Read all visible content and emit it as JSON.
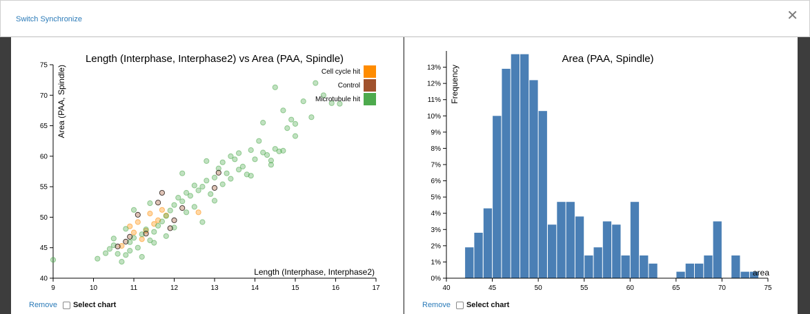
{
  "toolbar": {
    "sync_label": "Switch Synchronize",
    "close_glyph": "✕"
  },
  "colors": {
    "cell_cycle": "#ff8c00",
    "control": "#a0522d",
    "microtubule": "#4daa4d",
    "bar": "#4a7fb5",
    "link": "#2a7ab8"
  },
  "footer": {
    "remove_label": "Remove",
    "select_label": "Select chart"
  },
  "chart_data": [
    {
      "type": "scatter",
      "title": "Length (Interphase, Interphase2) vs Area (PAA, Spindle)",
      "xlabel": "Length (Interphase, Interphase2)",
      "ylabel": "Area (PAA, Spindle)",
      "xlim": [
        9,
        17
      ],
      "ylim": [
        40,
        75
      ],
      "xticks": [
        9,
        10,
        11,
        12,
        13,
        14,
        15,
        16,
        17
      ],
      "yticks": [
        40,
        45,
        50,
        55,
        60,
        65,
        70,
        75
      ],
      "legend_position": "top-right",
      "series": [
        {
          "name": "Cell cycle hit",
          "color": "#ff8c00",
          "points": [
            [
              10.7,
              45.3
            ],
            [
              10.9,
              48.5
            ],
            [
              11.1,
              49.2
            ],
            [
              11.3,
              47.8
            ],
            [
              11.4,
              50.6
            ],
            [
              11.6,
              49.5
            ],
            [
              11.8,
              50.3
            ],
            [
              11.2,
              46.4
            ],
            [
              11.0,
              47.5
            ],
            [
              12.6,
              50.8
            ],
            [
              11.5,
              48.9
            ],
            [
              11.7,
              51.2
            ]
          ]
        },
        {
          "name": "Control",
          "color": "#a0522d",
          "points": [
            [
              10.6,
              45.2
            ],
            [
              10.9,
              46.8
            ],
            [
              11.1,
              50.4
            ],
            [
              11.6,
              52.4
            ],
            [
              11.7,
              54.0
            ],
            [
              12.0,
              49.5
            ],
            [
              13.0,
              54.8
            ],
            [
              12.2,
              51.5
            ],
            [
              11.3,
              47.3
            ],
            [
              10.8,
              46.0
            ],
            [
              11.9,
              48.2
            ],
            [
              13.1,
              57.3
            ]
          ]
        },
        {
          "name": "Microtubule hit",
          "color": "#4daa4d",
          "points": [
            [
              9.0,
              43.0
            ],
            [
              10.1,
              43.2
            ],
            [
              10.3,
              44.1
            ],
            [
              10.4,
              44.8
            ],
            [
              10.5,
              45.4
            ],
            [
              10.6,
              44.0
            ],
            [
              10.7,
              42.7
            ],
            [
              10.8,
              43.8
            ],
            [
              10.9,
              45.9
            ],
            [
              11.0,
              46.6
            ],
            [
              11.1,
              45.0
            ],
            [
              11.2,
              47.2
            ],
            [
              11.3,
              48.0
            ],
            [
              11.4,
              46.2
            ],
            [
              11.5,
              47.6
            ],
            [
              11.6,
              48.6
            ],
            [
              11.7,
              49.3
            ],
            [
              11.8,
              50.2
            ],
            [
              11.9,
              51.1
            ],
            [
              12.0,
              52.0
            ],
            [
              12.1,
              53.2
            ],
            [
              12.2,
              52.6
            ],
            [
              12.3,
              54.0
            ],
            [
              12.4,
              53.5
            ],
            [
              12.5,
              55.2
            ],
            [
              12.6,
              54.4
            ],
            [
              12.7,
              55.0
            ],
            [
              12.8,
              56.0
            ],
            [
              12.9,
              53.8
            ],
            [
              13.0,
              56.5
            ],
            [
              13.1,
              58.0
            ],
            [
              13.2,
              59.0
            ],
            [
              13.3,
              57.2
            ],
            [
              13.4,
              60.0
            ],
            [
              13.5,
              59.5
            ],
            [
              13.6,
              60.5
            ],
            [
              13.7,
              58.3
            ],
            [
              13.8,
              57.0
            ],
            [
              13.9,
              61.0
            ],
            [
              14.0,
              59.5
            ],
            [
              14.1,
              62.5
            ],
            [
              14.2,
              65.5
            ],
            [
              14.3,
              60.2
            ],
            [
              14.4,
              58.6
            ],
            [
              14.5,
              61.2
            ],
            [
              14.6,
              60.8
            ],
            [
              14.7,
              67.5
            ],
            [
              14.8,
              64.6
            ],
            [
              14.9,
              66.0
            ],
            [
              15.0,
              63.3
            ],
            [
              15.2,
              69.0
            ],
            [
              15.5,
              72.0
            ],
            [
              15.7,
              70.0
            ],
            [
              15.9,
              68.7
            ],
            [
              16.1,
              68.6
            ],
            [
              10.5,
              46.5
            ],
            [
              10.9,
              44.5
            ],
            [
              11.2,
              43.5
            ],
            [
              11.5,
              45.8
            ],
            [
              11.8,
              46.9
            ],
            [
              12.0,
              48.3
            ],
            [
              12.3,
              50.8
            ],
            [
              12.5,
              51.7
            ],
            [
              12.7,
              49.2
            ],
            [
              13.0,
              52.7
            ],
            [
              13.2,
              55.4
            ],
            [
              13.4,
              56.3
            ],
            [
              13.6,
              57.8
            ],
            [
              13.9,
              56.8
            ],
            [
              14.2,
              60.6
            ],
            [
              14.4,
              59.3
            ],
            [
              14.7,
              60.9
            ],
            [
              15.0,
              65.3
            ],
            [
              15.4,
              66.4
            ],
            [
              14.5,
              71.3
            ],
            [
              12.2,
              57.2
            ],
            [
              12.8,
              59.2
            ],
            [
              11.0,
              51.2
            ],
            [
              11.4,
              52.3
            ],
            [
              10.8,
              48.1
            ]
          ]
        }
      ]
    },
    {
      "type": "bar",
      "title": "Area (PAA, Spindle)",
      "xlabel": "area",
      "ylabel": "Frequency",
      "xlim": [
        40,
        75
      ],
      "ylim": [
        0,
        0.14
      ],
      "xticks": [
        40,
        45,
        50,
        55,
        60,
        65,
        70,
        75
      ],
      "yticks": [
        "0%",
        "1%",
        "2%",
        "3%",
        "4%",
        "5%",
        "6%",
        "7%",
        "8%",
        "9%",
        "10%",
        "11%",
        "12%",
        "13%"
      ],
      "bin_start": 42,
      "bin_width": 1,
      "values": [
        0.019,
        0.028,
        0.043,
        0.1,
        0.129,
        0.138,
        0.138,
        0.122,
        0.103,
        0.033,
        0.047,
        0.047,
        0.038,
        0.014,
        0.019,
        0.035,
        0.033,
        0.014,
        0.047,
        0.014,
        0.009,
        0.0,
        0.0,
        0.004,
        0.009,
        0.009,
        0.014,
        0.035,
        0.0,
        0.014,
        0.004,
        0.004
      ]
    }
  ]
}
